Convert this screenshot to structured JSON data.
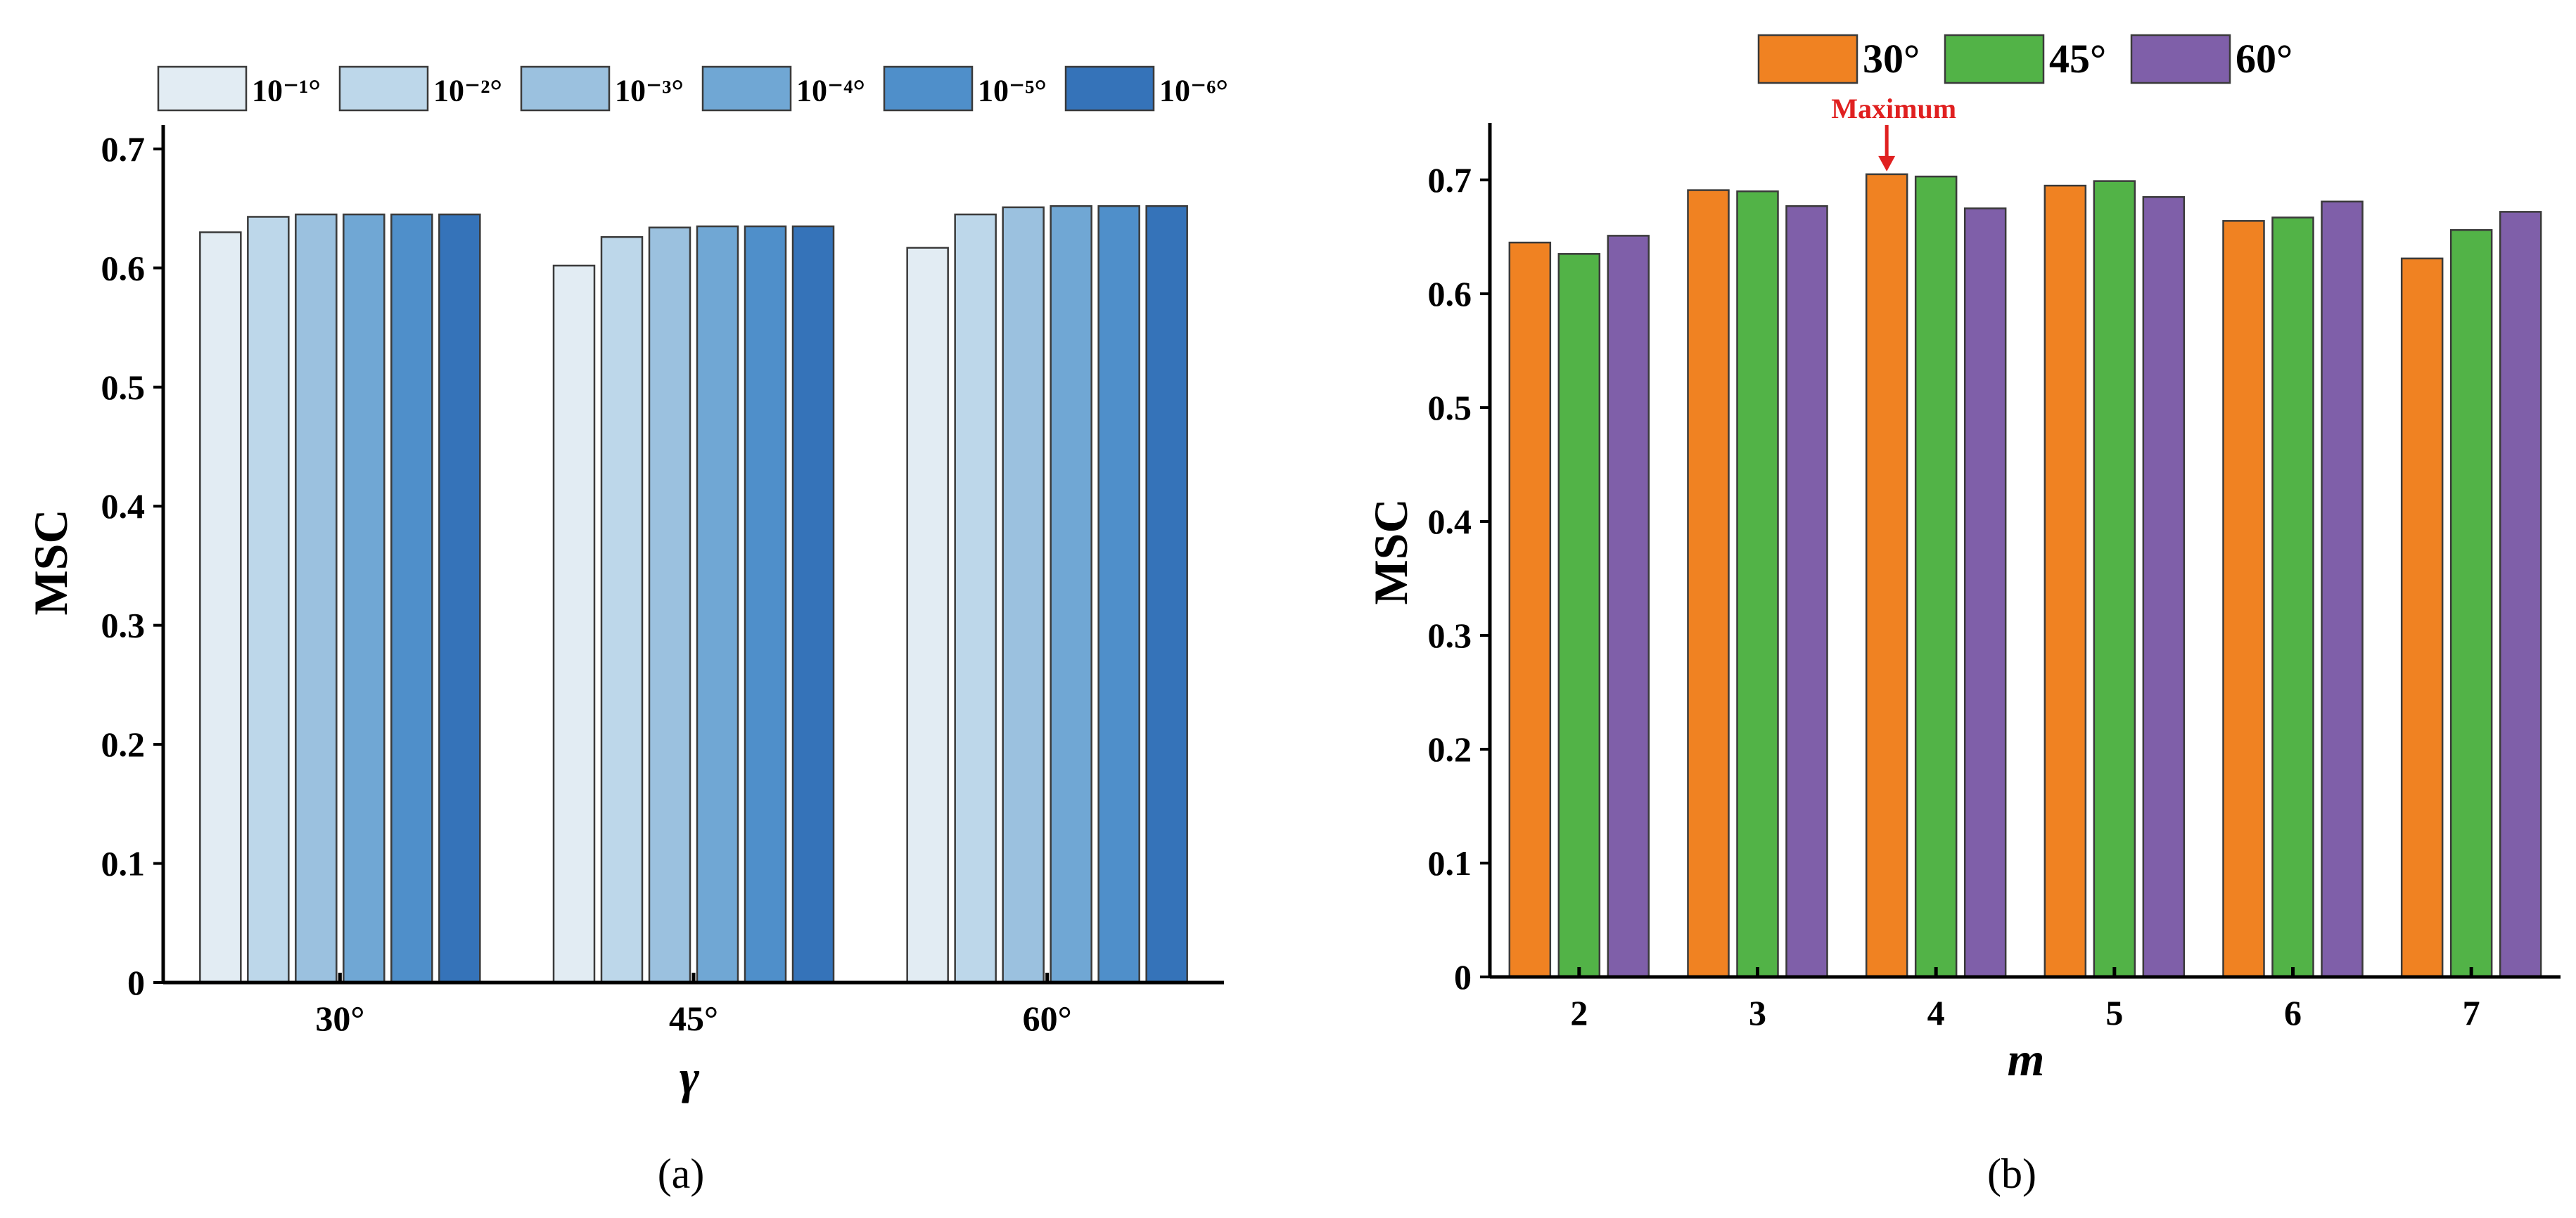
{
  "chart_data": [
    {
      "id": "a",
      "type": "bar",
      "caption": "(a)",
      "xlabel": "γ",
      "ylabel": "MSC",
      "categories": [
        "30°",
        "45°",
        "60°"
      ],
      "ylim": [
        0,
        0.72
      ],
      "yticks": [
        "0",
        "0.1",
        "0.2",
        "0.3",
        "0.4",
        "0.5",
        "0.6",
        "0.7"
      ],
      "ytick_values": [
        0,
        0.1,
        0.2,
        0.3,
        0.4,
        0.5,
        0.6,
        0.7
      ],
      "legend_position": "top",
      "series": [
        {
          "name": "10⁻¹°",
          "color": "#e2ecf3",
          "values": [
            0.63,
            0.602,
            0.617
          ]
        },
        {
          "name": "10⁻²°",
          "color": "#bdd7ea",
          "values": [
            0.643,
            0.626,
            0.645
          ]
        },
        {
          "name": "10⁻³°",
          "color": "#9bc1df",
          "values": [
            0.645,
            0.634,
            0.651
          ]
        },
        {
          "name": "10⁻⁴°",
          "color": "#70a7d4",
          "values": [
            0.645,
            0.635,
            0.652
          ]
        },
        {
          "name": "10⁻⁵°",
          "color": "#4f8fca",
          "values": [
            0.645,
            0.635,
            0.652
          ]
        },
        {
          "name": "10⁻⁶°",
          "color": "#3573b9",
          "values": [
            0.645,
            0.635,
            0.652
          ]
        }
      ]
    },
    {
      "id": "b",
      "type": "bar",
      "caption": "(b)",
      "xlabel": "m",
      "ylabel": "MSC",
      "categories": [
        "2",
        "3",
        "4",
        "5",
        "6",
        "7"
      ],
      "ylim": [
        0,
        0.75
      ],
      "yticks": [
        "0",
        "0.1",
        "0.2",
        "0.3",
        "0.4",
        "0.5",
        "0.6",
        "0.7"
      ],
      "ytick_values": [
        0,
        0.1,
        0.2,
        0.3,
        0.4,
        0.5,
        0.6,
        0.7
      ],
      "legend_position": "top",
      "annotation": {
        "text": "Maximum",
        "series": 0,
        "category": 2
      },
      "series": [
        {
          "name": "30°",
          "color": "#f08222",
          "values": [
            0.645,
            0.691,
            0.705,
            0.695,
            0.664,
            0.631
          ]
        },
        {
          "name": "45°",
          "color": "#52b347",
          "values": [
            0.635,
            0.69,
            0.703,
            0.699,
            0.667,
            0.656
          ]
        },
        {
          "name": "60°",
          "color": "#7f5fa9",
          "values": [
            0.651,
            0.677,
            0.675,
            0.685,
            0.681,
            0.672
          ]
        }
      ]
    }
  ]
}
